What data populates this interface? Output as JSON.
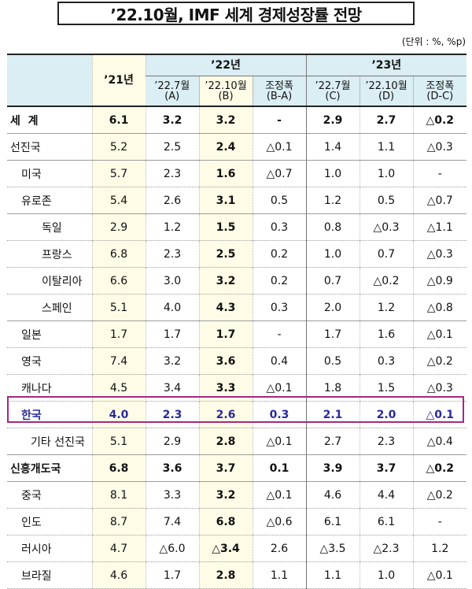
{
  "title": "’22.10월, IMF 세계 경제성장률 전망",
  "unit": "(단위 : %, %p)",
  "header": {
    "col21": "’21년",
    "year22": "’22년",
    "year23": "’23년",
    "sub": [
      "’22.7월\n(A)",
      "’22.10월\n(B)",
      "조정폭\n(B-A)",
      "’22.7월\n(C)",
      "’22.10월\n(D)",
      "조정폭\n(D-C)"
    ]
  },
  "rows": [
    {
      "name": "세  계",
      "v": [
        "6.1",
        "3.2",
        "3.2",
        "-",
        "2.9",
        "2.7",
        "△0.2"
      ]
    },
    {
      "name": "선진국",
      "v": [
        "5.2",
        "2.5",
        "2.4",
        "△0.1",
        "1.4",
        "1.1",
        "△0.3"
      ]
    },
    {
      "name": "미국",
      "v": [
        "5.7",
        "2.3",
        "1.6",
        "△0.7",
        "1.0",
        "1.0",
        "-"
      ]
    },
    {
      "name": "유로존",
      "v": [
        "5.4",
        "2.6",
        "3.1",
        "0.5",
        "1.2",
        "0.5",
        "△0.7"
      ]
    },
    {
      "name": "독일",
      "v": [
        "2.9",
        "1.2",
        "1.5",
        "0.3",
        "0.8",
        "△0.3",
        "△1.1"
      ]
    },
    {
      "name": "프랑스",
      "v": [
        "6.8",
        "2.3",
        "2.5",
        "0.2",
        "1.0",
        "0.7",
        "△0.3"
      ]
    },
    {
      "name": "이탈리아",
      "v": [
        "6.6",
        "3.0",
        "3.2",
        "0.2",
        "0.7",
        "△0.2",
        "△0.9"
      ]
    },
    {
      "name": "스페인",
      "v": [
        "5.1",
        "4.0",
        "4.3",
        "0.3",
        "2.0",
        "1.2",
        "△0.8"
      ]
    },
    {
      "name": "일본",
      "v": [
        "1.7",
        "1.7",
        "1.7",
        "-",
        "1.7",
        "1.6",
        "△0.1"
      ]
    },
    {
      "name": "영국",
      "v": [
        "7.4",
        "3.2",
        "3.6",
        "0.4",
        "0.5",
        "0.3",
        "△0.2"
      ]
    },
    {
      "name": "캐나다",
      "v": [
        "4.5",
        "3.4",
        "3.3",
        "△0.1",
        "1.8",
        "1.5",
        "△0.3"
      ]
    },
    {
      "name": "한국",
      "v": [
        "4.0",
        "2.3",
        "2.6",
        "0.3",
        "2.1",
        "2.0",
        "△0.1"
      ]
    },
    {
      "name": "기타 선진국",
      "v": [
        "5.1",
        "2.9",
        "2.8",
        "△0.1",
        "2.7",
        "2.3",
        "△0.4"
      ]
    },
    {
      "name": "신흥개도국",
      "v": [
        "6.8",
        "3.6",
        "3.7",
        "0.1",
        "3.9",
        "3.7",
        "△0.2"
      ]
    },
    {
      "name": "중국",
      "v": [
        "8.1",
        "3.3",
        "3.2",
        "△0.1",
        "4.6",
        "4.4",
        "△0.2"
      ]
    },
    {
      "name": "인도",
      "v": [
        "8.7",
        "7.4",
        "6.8",
        "△0.6",
        "6.1",
        "6.1",
        "-"
      ]
    },
    {
      "name": "러시아",
      "v": [
        "4.7",
        "△6.0",
        "△3.4",
        "2.6",
        "△3.5",
        "△2.3",
        "1.2"
      ]
    },
    {
      "name": "브라질",
      "v": [
        "4.6",
        "1.7",
        "2.8",
        "1.1",
        "1.1",
        "1.0",
        "△0.1"
      ]
    }
  ]
}
